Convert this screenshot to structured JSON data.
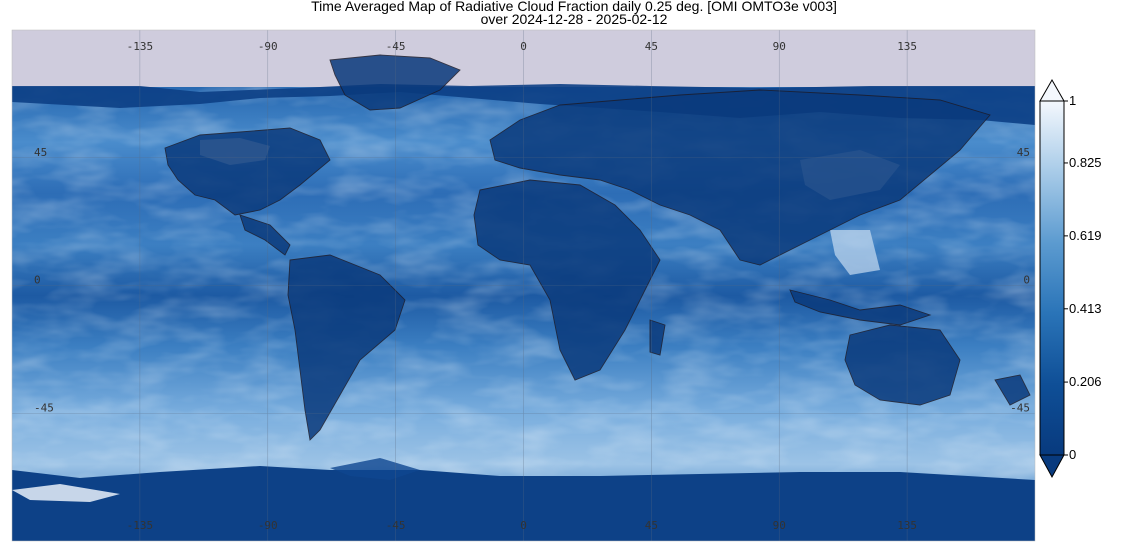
{
  "title": "Time Averaged Map of Radiative Cloud Fraction daily 0.25 deg. [OMI OMTO3e v003]",
  "subtitle": "over 2024-12-28 - 2025-02-12",
  "map": {
    "projection": "equirectangular",
    "lon_range": [
      -180,
      180
    ],
    "lat_range": [
      -90,
      90
    ],
    "no_data_color": "#cfccdd",
    "longitude_ticks": [
      "-135",
      "-90",
      "-45",
      "0",
      "45",
      "90",
      "135"
    ],
    "latitude_ticks": [
      "45",
      "0",
      "-45"
    ]
  },
  "colorbar": {
    "min": 0,
    "max": 1,
    "tick_labels": [
      "1",
      "0.825",
      "0.619",
      "0.413",
      "0.206",
      "0"
    ],
    "color_low": "#0b3f86",
    "color_mid": "#2f7ec0",
    "color_high": "#f4f8fd",
    "extend": "both"
  }
}
